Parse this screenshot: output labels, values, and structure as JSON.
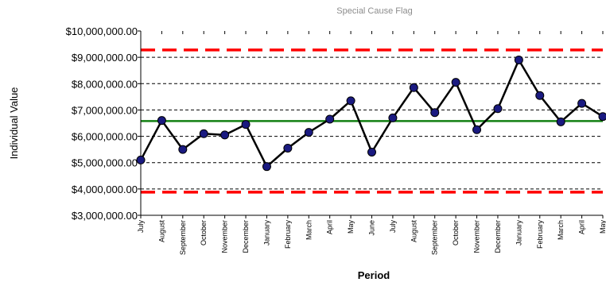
{
  "chart_data": {
    "type": "line",
    "legend": "Special Cause Flag",
    "xlabel": "Period",
    "ylabel": "Individual Value",
    "ylim": [
      3000000,
      10000000
    ],
    "y_ticks": [
      "$3,000,000.00",
      "$4,000,000.00",
      "$5,000,000.00",
      "$6,000,000.00",
      "$7,000,000.00",
      "$8,000,000.00",
      "$9,000,000.00",
      "$10,000,000.00"
    ],
    "categories": [
      "July",
      "August",
      "September",
      "October",
      "November",
      "December",
      "January",
      "February",
      "March",
      "April",
      "May",
      "June",
      "July",
      "August",
      "September",
      "October",
      "November",
      "December",
      "January",
      "February",
      "March",
      "April",
      "May"
    ],
    "values": [
      5100000,
      6600000,
      5500000,
      6100000,
      6050000,
      6450000,
      4850000,
      5550000,
      6150000,
      6650000,
      7350000,
      5400000,
      6700000,
      7850000,
      6900000,
      8050000,
      6250000,
      7050000,
      8900000,
      7550000,
      6550000,
      7250000,
      6750000
    ],
    "center_line": 6580000,
    "upper_control_limit": 9280000,
    "lower_control_limit": 3880000,
    "grid": "horizontal dashed",
    "colors": {
      "series": "#000000",
      "marker": "#1a1a80",
      "center_line": "#138013",
      "control_limits": "#ff0000"
    }
  }
}
